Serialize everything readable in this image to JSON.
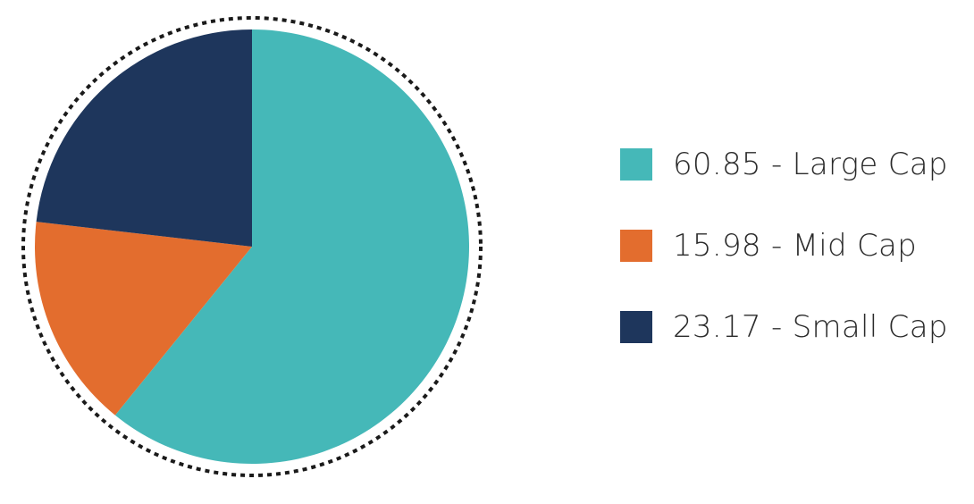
{
  "chart_data": {
    "type": "pie",
    "title": "",
    "slices": [
      {
        "label": "Large Cap",
        "value": 60.85,
        "color": "#45b8b8",
        "legend_text": "60.85 - Large Cap"
      },
      {
        "label": "Mid Cap",
        "value": 15.98,
        "color": "#e36d2e",
        "legend_text": "15.98 - Mid Cap"
      },
      {
        "label": "Small Cap",
        "value": 23.17,
        "color": "#1e365c",
        "legend_text": "23.17 - Small Cap"
      }
    ],
    "start_angle": "12 o'clock",
    "direction": "clockwise",
    "border": "dotted circle",
    "legend_position": "right"
  }
}
